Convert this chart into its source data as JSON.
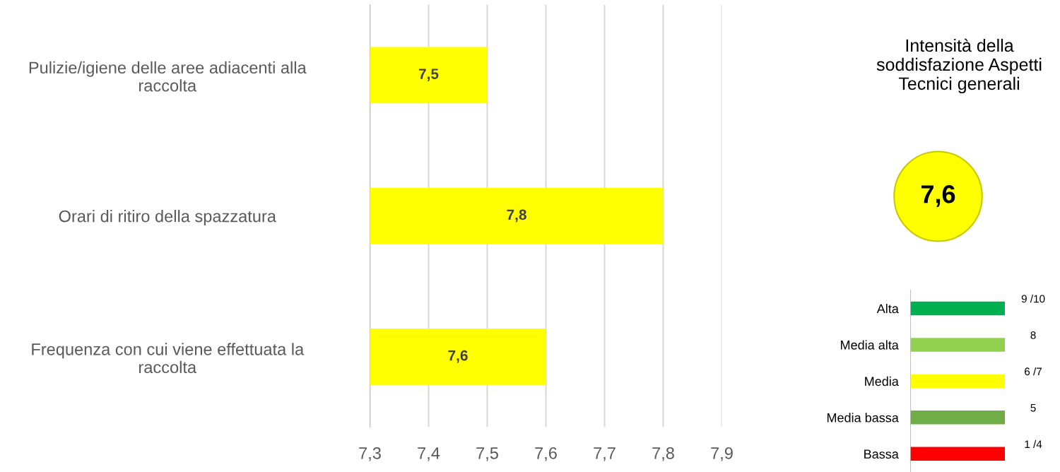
{
  "chart_data": [
    {
      "type": "bar",
      "orientation": "horizontal",
      "categories": [
        "Pulizie/igiene delle aree adiacenti alla raccolta",
        "Orari di ritiro della spazzatura",
        "Frequenza con cui viene effettuata la raccolta"
      ],
      "values": [
        7.5,
        7.8,
        7.6
      ],
      "color": "#ffff00",
      "value_labels": [
        "7,5",
        "7,8",
        "7,6"
      ],
      "xlim": [
        7.3,
        7.9
      ],
      "xticks": [
        {
          "value": 7.3,
          "label": "7,3"
        },
        {
          "value": 7.4,
          "label": "7,4"
        },
        {
          "value": 7.5,
          "label": "7,5"
        },
        {
          "value": 7.6,
          "label": "7,6"
        },
        {
          "value": 7.7,
          "label": "7,7"
        },
        {
          "value": 7.8,
          "label": "7,8"
        },
        {
          "value": 7.9,
          "label": "7,9"
        }
      ],
      "grid": "x",
      "legend": false
    },
    {
      "type": "other",
      "title": "Intensità della soddisfazione Aspetti Tecnici generali",
      "annotations": [
        "7,6"
      ],
      "categories": [
        "Alta",
        "Media alta",
        "Media",
        "Media bassa",
        "Bassa"
      ],
      "colors": [
        "#00b050",
        "#92d050",
        "#ffff00",
        "#70ad47",
        "#ff0000"
      ],
      "value_labels": [
        "9 /10",
        "8",
        "6 /7",
        "5",
        "1 /4"
      ]
    }
  ]
}
